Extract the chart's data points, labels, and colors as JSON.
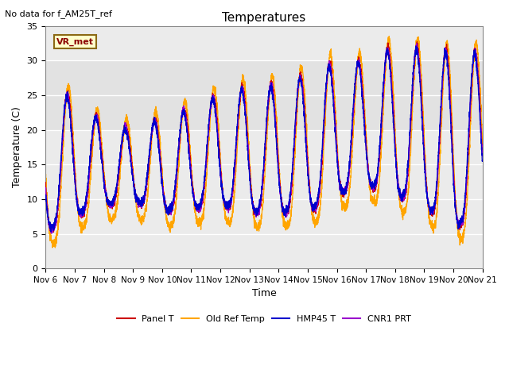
{
  "title": "Temperatures",
  "ylabel": "Temperature (C)",
  "xlabel": "Time",
  "ylim": [
    0,
    35
  ],
  "xlim": [
    0,
    15
  ],
  "note_text": "No data for f_AM25T_ref",
  "vrmet_label": "VR_met",
  "legend_entries": [
    "Panel T",
    "Old Ref Temp",
    "HMP45 T",
    "CNR1 PRT"
  ],
  "legend_colors": [
    "#cc0000",
    "#ffa500",
    "#0000cc",
    "#9900cc"
  ],
  "xtick_labels": [
    "Nov 6",
    "Nov 7",
    "Nov 8",
    "Nov 9",
    "Nov 10",
    "Nov 11",
    "Nov 12",
    "Nov 13",
    "Nov 14",
    "Nov 15",
    "Nov 16",
    "Nov 17",
    "Nov 18",
    "Nov 19",
    "Nov 20",
    "Nov 21"
  ],
  "ytick_labels": [
    "0",
    "5",
    "10",
    "15",
    "20",
    "25",
    "30",
    "35"
  ],
  "ytick_values": [
    0,
    5,
    10,
    15,
    20,
    25,
    30,
    35
  ],
  "shaded_ymin": 20,
  "shaded_ymax": 30,
  "day_peaks": [
    24.8,
    25.5,
    21.0,
    20.5,
    22.0,
    23.5,
    25.5,
    26.5,
    26.8,
    28.3,
    30.2,
    30.0,
    32.5,
    32.0,
    31.5,
    31.5
  ],
  "day_nights": [
    4.5,
    7.0,
    8.5,
    9.0,
    7.5,
    8.0,
    8.5,
    7.5,
    7.5,
    7.5,
    10.0,
    11.5,
    10.0,
    8.5,
    5.0,
    8.0
  ],
  "figsize": [
    6.4,
    4.8
  ],
  "dpi": 100
}
